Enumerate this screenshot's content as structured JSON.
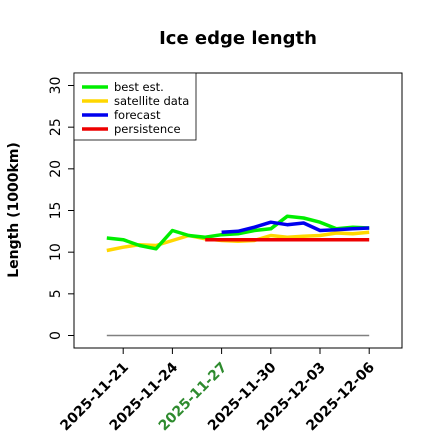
{
  "chart_data": {
    "type": "line",
    "title": "Ice edge length",
    "xlabel": "",
    "ylabel": "Length (1000km)",
    "ylim": [
      -1.5,
      31.5
    ],
    "yticks": [
      0,
      5,
      10,
      15,
      20,
      25,
      30
    ],
    "xlim": [
      "2025-11-18",
      "2025-12-08"
    ],
    "xticks": [
      {
        "label": "2025-11-21",
        "color": "#000000"
      },
      {
        "label": "2025-11-24",
        "color": "#000000"
      },
      {
        "label": "2025-11-27",
        "color": "#2e8b2e"
      },
      {
        "label": "2025-11-30",
        "color": "#000000"
      },
      {
        "label": "2025-12-03",
        "color": "#000000"
      },
      {
        "label": "2025-12-06",
        "color": "#000000"
      }
    ],
    "grid": false,
    "legend_position": "top-left",
    "series": [
      {
        "name": "best est.",
        "color": "#00ee00",
        "x": [
          "2025-11-20",
          "2025-11-21",
          "2025-11-22",
          "2025-11-23",
          "2025-11-24",
          "2025-11-25",
          "2025-11-26",
          "2025-11-27",
          "2025-11-28",
          "2025-11-29",
          "2025-11-30",
          "2025-12-01",
          "2025-12-02",
          "2025-12-03",
          "2025-12-04",
          "2025-12-05",
          "2025-12-06"
        ],
        "values": [
          11.7,
          11.5,
          10.8,
          10.4,
          12.6,
          12.0,
          11.8,
          12.1,
          12.2,
          12.6,
          12.8,
          14.3,
          14.1,
          13.6,
          12.8,
          13.0,
          12.9
        ]
      },
      {
        "name": "satellite data",
        "color": "#ffd700",
        "x": [
          "2025-11-20",
          "2025-11-21",
          "2025-11-22",
          "2025-11-23",
          "2025-11-24",
          "2025-11-25",
          "2025-11-26",
          "2025-11-27",
          "2025-11-28",
          "2025-11-29",
          "2025-11-30",
          "2025-12-01",
          "2025-12-02",
          "2025-12-03",
          "2025-12-04",
          "2025-12-05",
          "2025-12-06"
        ],
        "values": [
          10.2,
          10.6,
          10.9,
          10.8,
          11.4,
          12.0,
          11.6,
          11.4,
          11.3,
          11.4,
          12.0,
          11.8,
          11.9,
          12.0,
          12.3,
          12.2,
          12.4
        ]
      },
      {
        "name": "forecast",
        "color": "#0000ee",
        "x": [
          "2025-11-27",
          "2025-11-28",
          "2025-11-29",
          "2025-11-30",
          "2025-12-01",
          "2025-12-02",
          "2025-12-03",
          "2025-12-04",
          "2025-12-05",
          "2025-12-06"
        ],
        "values": [
          12.4,
          12.5,
          13.0,
          13.6,
          13.3,
          13.5,
          12.6,
          12.7,
          12.8,
          12.9
        ]
      },
      {
        "name": "persistence",
        "color": "#ee0000",
        "x": [
          "2025-11-26",
          "2025-11-27",
          "2025-11-28",
          "2025-11-29",
          "2025-11-30",
          "2025-12-01",
          "2025-12-02",
          "2025-12-03",
          "2025-12-04",
          "2025-12-05",
          "2025-12-06"
        ],
        "values": [
          11.5,
          11.5,
          11.5,
          11.5,
          11.5,
          11.5,
          11.5,
          11.5,
          11.5,
          11.5,
          11.5
        ]
      },
      {
        "name": "",
        "color": "#808080",
        "x": [
          "2025-11-20",
          "2025-12-06"
        ],
        "values": [
          0,
          0
        ]
      }
    ]
  }
}
